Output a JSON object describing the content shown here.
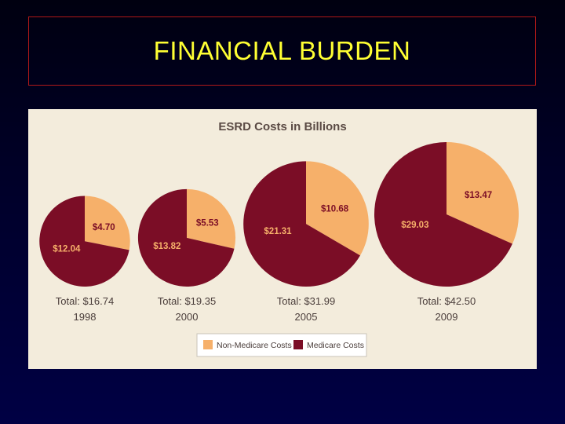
{
  "slide": {
    "title": "FINANCIAL BURDEN"
  },
  "colors": {
    "non_medicare": "#f6b06a",
    "medicare": "#7b0d26",
    "title_text": "#ffff33",
    "title_border": "#b01818"
  },
  "chart_data": {
    "type": "pie",
    "title": "ESRD Costs in Billions",
    "series_names": [
      "Non-Medicare Costs",
      "Medicare Costs"
    ],
    "legend": {
      "position": "bottom",
      "items": [
        "Non-Medicare Costs",
        "Medicare Costs"
      ]
    },
    "pies": [
      {
        "year": "1998",
        "total_label": "Total: $16.74",
        "non_medicare": 4.7,
        "medicare": 12.04,
        "non_medicare_label": "$4.70",
        "medicare_label": "$12.04"
      },
      {
        "year": "2000",
        "total_label": "Total: $19.35",
        "non_medicare": 5.53,
        "medicare": 13.82,
        "non_medicare_label": "$5.53",
        "medicare_label": "$13.82"
      },
      {
        "year": "2005",
        "total_label": "Total: $31.99",
        "non_medicare": 10.68,
        "medicare": 21.31,
        "non_medicare_label": "$10.68",
        "medicare_label": "$21.31"
      },
      {
        "year": "2009",
        "total_label": "Total: $42.50",
        "non_medicare": 13.47,
        "medicare": 29.03,
        "non_medicare_label": "$13.47",
        "medicare_label": "$29.03"
      }
    ]
  }
}
